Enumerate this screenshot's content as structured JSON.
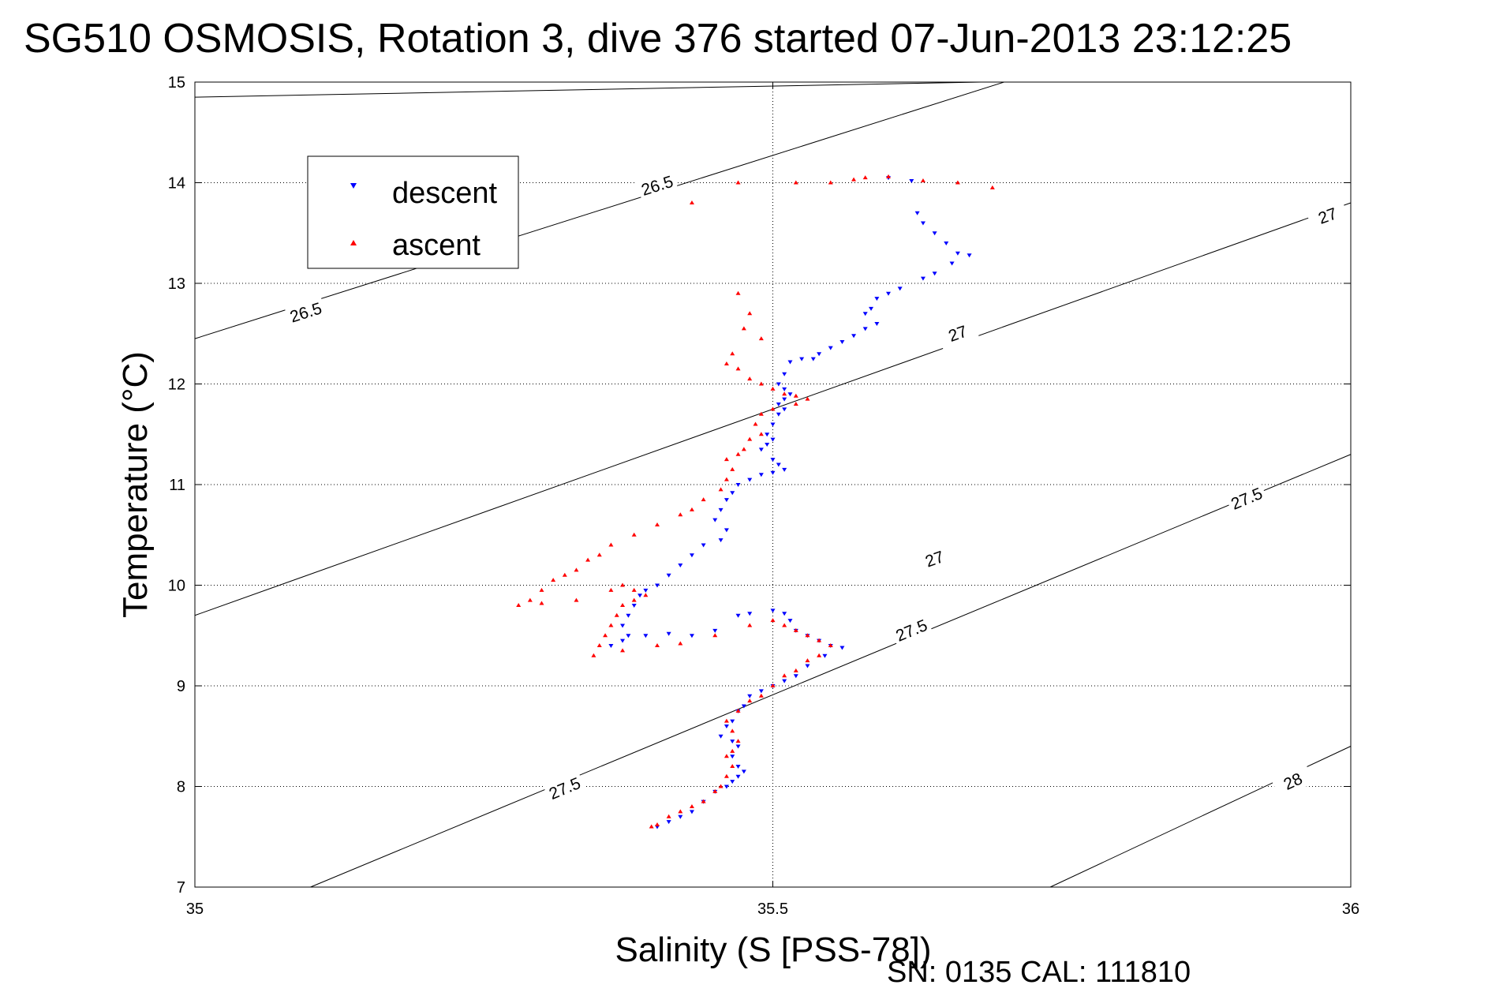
{
  "chart_data": {
    "type": "scatter",
    "title": "SG510 OSMOSIS, Rotation 3, dive 376 started 07-Jun-2013 23:12:25",
    "xlabel": "Salinity (S [PSS-78])",
    "ylabel": "Temperature (°C)",
    "xlim": [
      35,
      36
    ],
    "ylim": [
      7,
      15
    ],
    "xticks": [
      "35",
      "35.5",
      "36"
    ],
    "yticks": [
      "7",
      "8",
      "9",
      "10",
      "11",
      "12",
      "13",
      "14",
      "15"
    ],
    "grid": true,
    "legend_position": "top-left",
    "footer": "SN: 0135  CAL: 111810",
    "density_contours": [
      {
        "level": "26.5",
        "lines": [
          [
            [
              35.0,
              14.85
            ],
            [
              35.68,
              15.0
            ]
          ],
          [
            [
              35.0,
              12.45
            ],
            [
              35.7,
              15.0
            ]
          ]
        ],
        "labels": [
          [
            35.4,
            13.97
          ],
          [
            35.096,
            12.71
          ]
        ]
      },
      {
        "level": "27",
        "lines": [
          [
            [
              35.0,
              9.7
            ],
            [
              36.0,
              13.8
            ]
          ]
        ],
        "labels": [
          [
            35.64,
            10.26
          ],
          [
            35.66,
            12.5
          ],
          [
            35.98,
            13.67
          ]
        ]
      },
      {
        "level": "27.5",
        "lines": [
          [
            [
              35.1,
              7.0
            ],
            [
              36.0,
              11.3
            ]
          ]
        ],
        "labels": [
          [
            35.32,
            7.98
          ],
          [
            35.62,
            9.55
          ],
          [
            35.91,
            10.86
          ]
        ]
      },
      {
        "level": "28",
        "lines": [
          [
            [
              35.74,
              7.0
            ],
            [
              36.0,
              8.4
            ]
          ]
        ],
        "labels": [
          [
            35.95,
            8.05
          ]
        ]
      }
    ],
    "series": [
      {
        "name": "descent",
        "color": "#0000ff",
        "marker": "triangle-down",
        "points": [
          [
            35.6,
            14.05
          ],
          [
            35.62,
            14.02
          ],
          [
            35.625,
            13.7
          ],
          [
            35.63,
            13.6
          ],
          [
            35.64,
            13.5
          ],
          [
            35.65,
            13.4
          ],
          [
            35.66,
            13.3
          ],
          [
            35.67,
            13.28
          ],
          [
            35.655,
            13.2
          ],
          [
            35.64,
            13.1
          ],
          [
            35.63,
            13.05
          ],
          [
            35.61,
            12.95
          ],
          [
            35.6,
            12.9
          ],
          [
            35.59,
            12.85
          ],
          [
            35.585,
            12.75
          ],
          [
            35.58,
            12.7
          ],
          [
            35.59,
            12.6
          ],
          [
            35.58,
            12.55
          ],
          [
            35.57,
            12.48
          ],
          [
            35.56,
            12.42
          ],
          [
            35.55,
            12.36
          ],
          [
            35.54,
            12.3
          ],
          [
            35.535,
            12.25
          ],
          [
            35.525,
            12.25
          ],
          [
            35.515,
            12.22
          ],
          [
            35.51,
            12.1
          ],
          [
            35.505,
            12.0
          ],
          [
            35.51,
            11.95
          ],
          [
            35.515,
            11.9
          ],
          [
            35.51,
            11.85
          ],
          [
            35.505,
            11.8
          ],
          [
            35.51,
            11.75
          ],
          [
            35.505,
            11.7
          ],
          [
            35.5,
            11.6
          ],
          [
            35.495,
            11.5
          ],
          [
            35.5,
            11.45
          ],
          [
            35.495,
            11.4
          ],
          [
            35.49,
            11.35
          ],
          [
            35.5,
            11.25
          ],
          [
            35.505,
            11.2
          ],
          [
            35.51,
            11.15
          ],
          [
            35.5,
            11.12
          ],
          [
            35.49,
            11.1
          ],
          [
            35.48,
            11.05
          ],
          [
            35.47,
            11.0
          ],
          [
            35.465,
            10.92
          ],
          [
            35.46,
            10.85
          ],
          [
            35.455,
            10.75
          ],
          [
            35.45,
            10.65
          ],
          [
            35.46,
            10.55
          ],
          [
            35.455,
            10.45
          ],
          [
            35.44,
            10.4
          ],
          [
            35.43,
            10.3
          ],
          [
            35.42,
            10.2
          ],
          [
            35.41,
            10.1
          ],
          [
            35.4,
            10.0
          ],
          [
            35.39,
            9.95
          ],
          [
            35.385,
            9.9
          ],
          [
            35.38,
            9.8
          ],
          [
            35.375,
            9.7
          ],
          [
            35.37,
            9.6
          ],
          [
            35.375,
            9.5
          ],
          [
            35.37,
            9.45
          ],
          [
            35.36,
            9.4
          ],
          [
            35.39,
            9.5
          ],
          [
            35.41,
            9.52
          ],
          [
            35.43,
            9.5
          ],
          [
            35.45,
            9.55
          ],
          [
            35.47,
            9.7
          ],
          [
            35.48,
            9.72
          ],
          [
            35.5,
            9.75
          ],
          [
            35.51,
            9.72
          ],
          [
            35.515,
            9.65
          ],
          [
            35.52,
            9.55
          ],
          [
            35.53,
            9.5
          ],
          [
            35.54,
            9.45
          ],
          [
            35.55,
            9.4
          ],
          [
            35.56,
            9.38
          ],
          [
            35.545,
            9.3
          ],
          [
            35.53,
            9.2
          ],
          [
            35.52,
            9.1
          ],
          [
            35.51,
            9.05
          ],
          [
            35.5,
            9.0
          ],
          [
            35.49,
            8.95
          ],
          [
            35.48,
            8.9
          ],
          [
            35.475,
            8.8
          ],
          [
            35.47,
            8.75
          ],
          [
            35.465,
            8.65
          ],
          [
            35.46,
            8.6
          ],
          [
            35.455,
            8.5
          ],
          [
            35.465,
            8.45
          ],
          [
            35.47,
            8.4
          ],
          [
            35.465,
            8.3
          ],
          [
            35.47,
            8.2
          ],
          [
            35.475,
            8.15
          ],
          [
            35.47,
            8.1
          ],
          [
            35.465,
            8.05
          ],
          [
            35.46,
            8.0
          ],
          [
            35.45,
            7.95
          ],
          [
            35.44,
            7.85
          ],
          [
            35.43,
            7.75
          ],
          [
            35.42,
            7.7
          ],
          [
            35.41,
            7.65
          ],
          [
            35.4,
            7.6
          ]
        ]
      },
      {
        "name": "ascent",
        "color": "#ff0000",
        "marker": "triangle-up",
        "points": [
          [
            35.58,
            14.05
          ],
          [
            35.6,
            14.06
          ],
          [
            35.57,
            14.03
          ],
          [
            35.55,
            14.0
          ],
          [
            35.52,
            14.0
          ],
          [
            35.47,
            14.0
          ],
          [
            35.43,
            13.8
          ],
          [
            35.69,
            13.95
          ],
          [
            35.66,
            14.0
          ],
          [
            35.63,
            14.02
          ],
          [
            35.47,
            12.9
          ],
          [
            35.48,
            12.7
          ],
          [
            35.475,
            12.55
          ],
          [
            35.49,
            12.45
          ],
          [
            35.465,
            12.3
          ],
          [
            35.46,
            12.2
          ],
          [
            35.47,
            12.15
          ],
          [
            35.48,
            12.05
          ],
          [
            35.49,
            12.0
          ],
          [
            35.5,
            11.95
          ],
          [
            35.51,
            11.9
          ],
          [
            35.52,
            11.88
          ],
          [
            35.53,
            11.85
          ],
          [
            35.52,
            11.8
          ],
          [
            35.5,
            11.75
          ],
          [
            35.49,
            11.7
          ],
          [
            35.485,
            11.6
          ],
          [
            35.49,
            11.5
          ],
          [
            35.48,
            11.45
          ],
          [
            35.475,
            11.35
          ],
          [
            35.47,
            11.3
          ],
          [
            35.46,
            11.25
          ],
          [
            35.465,
            11.15
          ],
          [
            35.46,
            11.05
          ],
          [
            35.455,
            10.95
          ],
          [
            35.44,
            10.85
          ],
          [
            35.43,
            10.75
          ],
          [
            35.42,
            10.7
          ],
          [
            35.4,
            10.6
          ],
          [
            35.38,
            10.5
          ],
          [
            35.36,
            10.4
          ],
          [
            35.35,
            10.3
          ],
          [
            35.34,
            10.25
          ],
          [
            35.33,
            10.15
          ],
          [
            35.32,
            10.1
          ],
          [
            35.31,
            10.05
          ],
          [
            35.3,
            9.95
          ],
          [
            35.29,
            9.85
          ],
          [
            35.28,
            9.8
          ],
          [
            35.3,
            9.82
          ],
          [
            35.33,
            9.85
          ],
          [
            35.36,
            9.95
          ],
          [
            35.37,
            10.0
          ],
          [
            35.38,
            9.95
          ],
          [
            35.39,
            9.9
          ],
          [
            35.38,
            9.85
          ],
          [
            35.37,
            9.8
          ],
          [
            35.365,
            9.7
          ],
          [
            35.36,
            9.6
          ],
          [
            35.355,
            9.5
          ],
          [
            35.35,
            9.4
          ],
          [
            35.345,
            9.3
          ],
          [
            35.37,
            9.35
          ],
          [
            35.4,
            9.4
          ],
          [
            35.42,
            9.42
          ],
          [
            35.45,
            9.5
          ],
          [
            35.48,
            9.6
          ],
          [
            35.5,
            9.65
          ],
          [
            35.51,
            9.6
          ],
          [
            35.52,
            9.55
          ],
          [
            35.53,
            9.5
          ],
          [
            35.54,
            9.45
          ],
          [
            35.55,
            9.4
          ],
          [
            35.54,
            9.3
          ],
          [
            35.53,
            9.25
          ],
          [
            35.52,
            9.15
          ],
          [
            35.51,
            9.1
          ],
          [
            35.5,
            9.0
          ],
          [
            35.49,
            8.9
          ],
          [
            35.48,
            8.85
          ],
          [
            35.47,
            8.75
          ],
          [
            35.46,
            8.65
          ],
          [
            35.465,
            8.55
          ],
          [
            35.47,
            8.45
          ],
          [
            35.465,
            8.35
          ],
          [
            35.46,
            8.3
          ],
          [
            35.465,
            8.2
          ],
          [
            35.46,
            8.1
          ],
          [
            35.455,
            8.0
          ],
          [
            35.45,
            7.95
          ],
          [
            35.44,
            7.85
          ],
          [
            35.43,
            7.8
          ],
          [
            35.42,
            7.75
          ],
          [
            35.41,
            7.7
          ],
          [
            35.4,
            7.62
          ],
          [
            35.395,
            7.6
          ]
        ]
      }
    ]
  }
}
